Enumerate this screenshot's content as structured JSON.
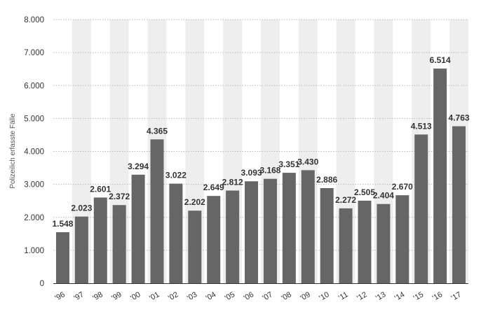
{
  "chart_data": {
    "type": "bar",
    "title": "",
    "xlabel": "",
    "ylabel": "Polizeilich erfasste Fälle",
    "categories": [
      "'96",
      "'97",
      "'98",
      "'99",
      "'00",
      "'01",
      "'02",
      "'03",
      "'04",
      "'05",
      "'06",
      "'07",
      "'08",
      "'09",
      "'10",
      "'11",
      "'12",
      "'13",
      "'14",
      "'15",
      "'16",
      "'17"
    ],
    "values": [
      1548,
      2023,
      2601,
      2372,
      3294,
      4365,
      3022,
      2202,
      2649,
      2812,
      3093,
      3168,
      3351,
      3430,
      2886,
      2272,
      2505,
      2404,
      2670,
      4513,
      6514,
      4763
    ],
    "value_labels": [
      "1.548",
      "2.023",
      "2.601",
      "2.372",
      "3.294",
      "4.365",
      "3.022",
      "2.202",
      "2.649",
      "2.812",
      "3.093",
      "3.168",
      "3.351",
      "3.430",
      "2.886",
      "2.272",
      "2.505",
      "2.404",
      "2.670",
      "4.513",
      "6.514",
      "4.763"
    ],
    "ylim": [
      0,
      8000
    ],
    "yticks": [
      0,
      1000,
      2000,
      3000,
      4000,
      5000,
      6000,
      7000,
      8000
    ],
    "ytick_labels": [
      "0",
      "1.000",
      "2.000",
      "3.000",
      "4.000",
      "5.000",
      "6.000",
      "7.000",
      "8.000"
    ],
    "grid": true,
    "alternating_column_background": true,
    "legend": "none",
    "colors": {
      "bar": "#666666",
      "stripe": "#eeeeee",
      "grid": "#b8b8b8",
      "axis": "#333333",
      "text": "#333333"
    }
  }
}
